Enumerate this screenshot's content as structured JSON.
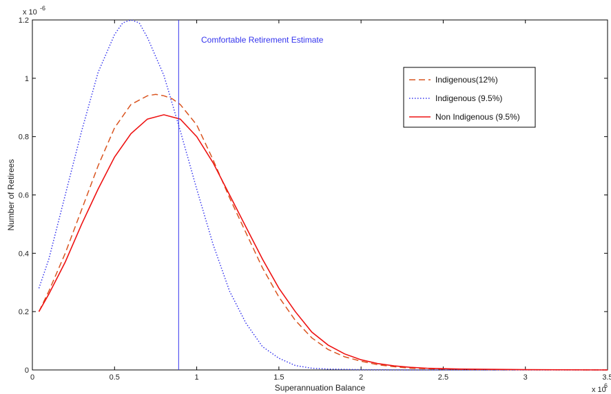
{
  "chart_data": {
    "type": "line",
    "xlabel": "Superannuation Balance",
    "ylabel": "Number of Retirees",
    "x_exponent_base": "x 10",
    "x_exponent_power": "6",
    "y_exponent_base": "x 10",
    "y_exponent_power": "-6",
    "xlim": [
      0,
      3.5
    ],
    "ylim": [
      0,
      1.2
    ],
    "x_ticks": [
      0,
      0.5,
      1,
      1.5,
      2,
      2.5,
      3,
      3.5
    ],
    "x_tick_labels": [
      "0",
      "0.5",
      "1",
      "1.5",
      "2",
      "2.5",
      "3",
      "3.5"
    ],
    "y_ticks": [
      0,
      0.2,
      0.4,
      0.6,
      0.8,
      1,
      1.2
    ],
    "y_tick_labels": [
      "0",
      "0.2",
      "0.4",
      "0.6",
      "0.8",
      "1",
      "1.2"
    ],
    "grid": false,
    "legend_position": "top-right",
    "annotation": {
      "text": "Comfortable Retirement Estimate",
      "x": 0.89,
      "color": "#3333ee"
    },
    "series": [
      {
        "name": "Indigenous(12%)",
        "style": "dashed",
        "color": "#d9531e",
        "x": [
          0.04,
          0.1,
          0.2,
          0.3,
          0.4,
          0.5,
          0.6,
          0.7,
          0.75,
          0.8,
          0.85,
          0.9,
          1.0,
          1.1,
          1.2,
          1.3,
          1.4,
          1.5,
          1.6,
          1.7,
          1.8,
          1.9,
          2.0,
          2.1,
          2.2,
          2.3,
          2.4,
          2.6,
          3.0,
          3.5
        ],
        "y": [
          0.2,
          0.27,
          0.4,
          0.55,
          0.7,
          0.83,
          0.91,
          0.94,
          0.945,
          0.94,
          0.93,
          0.91,
          0.84,
          0.72,
          0.59,
          0.47,
          0.35,
          0.25,
          0.17,
          0.11,
          0.07,
          0.045,
          0.03,
          0.018,
          0.011,
          0.006,
          0.004,
          0.002,
          0.0005,
          0.0
        ]
      },
      {
        "name": "Indigenous (9.5%)",
        "style": "dotted",
        "color": "#3333ee",
        "x": [
          0.04,
          0.1,
          0.2,
          0.3,
          0.4,
          0.5,
          0.55,
          0.6,
          0.65,
          0.7,
          0.8,
          0.9,
          1.0,
          1.1,
          1.2,
          1.3,
          1.4,
          1.5,
          1.6,
          1.7,
          1.8,
          2.0,
          2.3,
          3.5
        ],
        "y": [
          0.28,
          0.38,
          0.6,
          0.82,
          1.02,
          1.15,
          1.19,
          1.2,
          1.19,
          1.14,
          1.01,
          0.82,
          0.62,
          0.43,
          0.27,
          0.16,
          0.08,
          0.04,
          0.015,
          0.006,
          0.003,
          0.001,
          0.0,
          0.0
        ]
      },
      {
        "name": "Non Indigenous (9.5%)",
        "style": "solid",
        "color": "#ee1111",
        "x": [
          0.04,
          0.1,
          0.2,
          0.3,
          0.4,
          0.5,
          0.6,
          0.7,
          0.8,
          0.9,
          1.0,
          1.1,
          1.2,
          1.3,
          1.4,
          1.5,
          1.6,
          1.7,
          1.8,
          1.9,
          2.0,
          2.1,
          2.2,
          2.3,
          2.4,
          2.6,
          3.0,
          3.5
        ],
        "y": [
          0.2,
          0.26,
          0.37,
          0.5,
          0.62,
          0.73,
          0.81,
          0.86,
          0.875,
          0.86,
          0.8,
          0.71,
          0.6,
          0.49,
          0.38,
          0.28,
          0.2,
          0.13,
          0.085,
          0.055,
          0.035,
          0.022,
          0.014,
          0.009,
          0.006,
          0.003,
          0.001,
          0.0
        ]
      }
    ]
  }
}
